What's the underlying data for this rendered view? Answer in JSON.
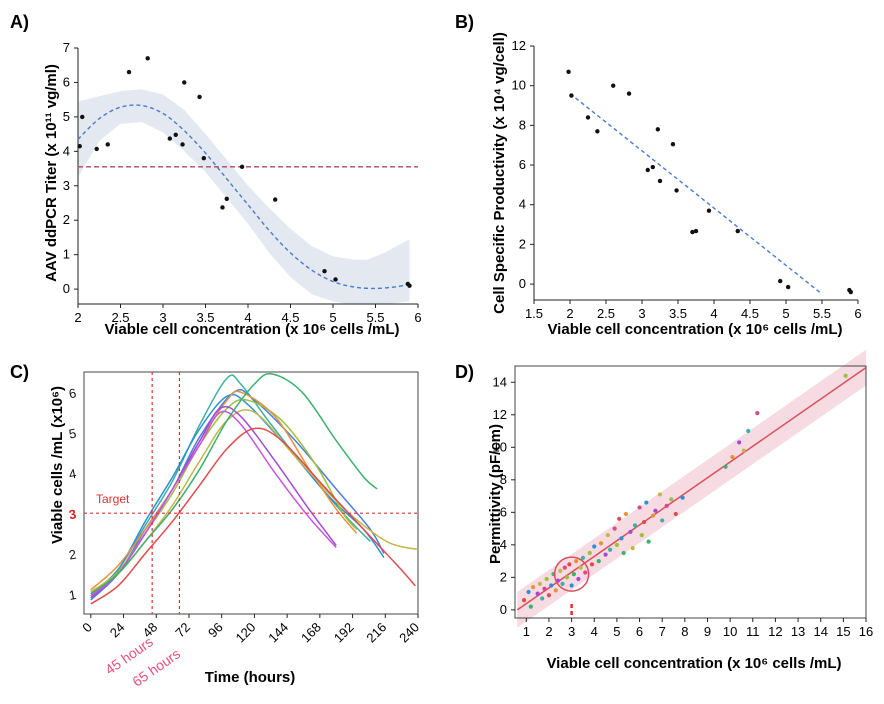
{
  "chart_data": [
    {
      "panel": "A)",
      "type": "scatter",
      "xlabel": "Viable cell concentration (x 10⁶ cells /mL)",
      "ylabel": "AAV ddPCR Titer (x 10¹¹ vg/ml)",
      "xlim": [
        2,
        6
      ],
      "ylim": [
        -0.2,
        7
      ],
      "xticks": [
        "2",
        "2.5",
        "3",
        "3.5",
        "4",
        "4.5",
        "5",
        "5.5",
        "6"
      ],
      "yticks": [
        "0",
        "1",
        "2",
        "3",
        "4",
        "5",
        "6",
        "7"
      ],
      "points": [
        [
          2.02,
          4.15
        ],
        [
          2.05,
          5.0
        ],
        [
          2.22,
          4.07
        ],
        [
          2.35,
          4.2
        ],
        [
          2.6,
          6.3
        ],
        [
          2.82,
          6.7
        ],
        [
          3.08,
          4.37
        ],
        [
          3.15,
          4.48
        ],
        [
          3.23,
          4.2
        ],
        [
          3.25,
          6.0
        ],
        [
          3.43,
          5.58
        ],
        [
          3.48,
          3.8
        ],
        [
          3.7,
          2.37
        ],
        [
          3.75,
          2.62
        ],
        [
          3.93,
          3.55
        ],
        [
          4.32,
          2.6
        ],
        [
          4.9,
          0.52
        ],
        [
          5.03,
          0.28
        ],
        [
          5.88,
          0.15
        ],
        [
          5.9,
          0.1
        ]
      ],
      "fit_curve": [
        [
          2.0,
          4.35
        ],
        [
          2.25,
          4.95
        ],
        [
          2.5,
          5.28
        ],
        [
          2.75,
          5.33
        ],
        [
          3.0,
          5.1
        ],
        [
          3.25,
          4.6
        ],
        [
          3.5,
          3.95
        ],
        [
          3.75,
          3.2
        ],
        [
          4.0,
          2.45
        ],
        [
          4.25,
          1.7
        ],
        [
          4.5,
          1.05
        ],
        [
          4.75,
          0.55
        ],
        [
          5.0,
          0.22
        ],
        [
          5.25,
          0.06
        ],
        [
          5.5,
          0.02
        ],
        [
          5.75,
          0.07
        ],
        [
          5.9,
          0.15
        ]
      ],
      "confidence_band": {
        "upper": [
          [
            2.0,
            5.45
          ],
          [
            2.25,
            5.6
          ],
          [
            2.5,
            5.75
          ],
          [
            2.75,
            5.8
          ],
          [
            3.0,
            5.65
          ],
          [
            3.25,
            5.2
          ],
          [
            3.5,
            4.5
          ],
          [
            3.75,
            3.75
          ],
          [
            4.0,
            3.0
          ],
          [
            4.25,
            2.35
          ],
          [
            4.5,
            1.75
          ],
          [
            4.75,
            1.25
          ],
          [
            5.0,
            0.95
          ],
          [
            5.25,
            0.85
          ],
          [
            5.4,
            0.85
          ],
          [
            5.6,
            1.05
          ],
          [
            5.9,
            1.45
          ]
        ],
        "lower": [
          [
            2.0,
            3.25
          ],
          [
            2.25,
            4.3
          ],
          [
            2.5,
            4.8
          ],
          [
            2.75,
            4.85
          ],
          [
            3.0,
            4.55
          ],
          [
            3.25,
            4.0
          ],
          [
            3.5,
            3.4
          ],
          [
            3.75,
            2.65
          ],
          [
            4.0,
            1.9
          ],
          [
            4.25,
            1.05
          ],
          [
            4.5,
            0.35
          ],
          [
            4.75,
            -0.15
          ],
          [
            5.0,
            -0.35
          ],
          [
            5.2,
            -0.45
          ],
          [
            5.5,
            -0.45
          ],
          [
            5.75,
            -0.4
          ],
          [
            5.9,
            -0.35
          ]
        ]
      },
      "reference_line_y": 3.55,
      "colors": {
        "points": "#111111",
        "fit": "#4a7bd0",
        "band": "#e3e8f1",
        "reference": "#b5485f"
      }
    },
    {
      "panel": "B)",
      "type": "scatter",
      "xlabel": "Viable cell concentration (x 10⁶ cells /mL)",
      "ylabel": "Cell Specific Productivity (x 10⁴ vg/cell)",
      "xlim": [
        1.5,
        6
      ],
      "ylim": [
        -0.5,
        12
      ],
      "xticks": [
        "1.5",
        "2",
        "2.5",
        "3",
        "3.5",
        "4",
        "4.5",
        "5",
        "5.5",
        "6"
      ],
      "yticks": [
        "0",
        "2",
        "4",
        "6",
        "8",
        "10",
        "12"
      ],
      "points": [
        [
          1.98,
          10.7
        ],
        [
          2.02,
          9.5
        ],
        [
          2.25,
          8.4
        ],
        [
          2.38,
          7.7
        ],
        [
          2.6,
          10.0
        ],
        [
          2.82,
          9.6
        ],
        [
          3.08,
          5.75
        ],
        [
          3.15,
          5.9
        ],
        [
          3.22,
          7.8
        ],
        [
          3.25,
          5.2
        ],
        [
          3.43,
          7.05
        ],
        [
          3.48,
          4.72
        ],
        [
          3.7,
          2.62
        ],
        [
          3.75,
          2.67
        ],
        [
          3.93,
          3.7
        ],
        [
          4.33,
          2.67
        ],
        [
          4.92,
          0.15
        ],
        [
          5.03,
          -0.15
        ],
        [
          5.88,
          -0.3
        ],
        [
          5.9,
          -0.4
        ]
      ],
      "fit_line": [
        [
          2.0,
          9.6
        ],
        [
          5.5,
          -0.5
        ]
      ],
      "colors": {
        "points": "#111111",
        "fit": "#4a7bd0"
      }
    },
    {
      "panel": "C)",
      "type": "line",
      "xlabel": "Time (hours)",
      "ylabel": "Viable cells /mL (x10⁶)",
      "xlim": [
        -5,
        240
      ],
      "ylim": [
        0.5,
        6.5
      ],
      "xticks": [
        "0",
        "24",
        "48",
        "72",
        "96",
        "120",
        "144",
        "168",
        "192",
        "216",
        "240"
      ],
      "yticks": [
        "1",
        "2",
        "3",
        "4",
        "5",
        "6"
      ],
      "target": {
        "label": "Target",
        "y": 3,
        "y_tick_label": "3"
      },
      "vertical_markers": [
        {
          "x": 45,
          "label": "45 hours"
        },
        {
          "x": 65,
          "label": "65 hours"
        }
      ],
      "series": [
        {
          "color": "#3db0a8",
          "points": [
            [
              0,
              0.95
            ],
            [
              20,
              1.6
            ],
            [
              40,
              2.7
            ],
            [
              60,
              3.8
            ],
            [
              80,
              5.2
            ],
            [
              100,
              6.35
            ],
            [
              110,
              6.2
            ],
            [
              130,
              5.3
            ],
            [
              160,
              4.0
            ],
            [
              185,
              3.0
            ],
            [
              205,
              2.3
            ]
          ]
        },
        {
          "color": "#4a7de0",
          "points": [
            [
              0,
              0.85
            ],
            [
              20,
              1.5
            ],
            [
              40,
              2.6
            ],
            [
              60,
              3.6
            ],
            [
              80,
              4.9
            ],
            [
              105,
              6.0
            ],
            [
              120,
              5.8
            ],
            [
              150,
              4.8
            ],
            [
              180,
              3.6
            ],
            [
              205,
              2.6
            ],
            [
              215,
              2.0
            ]
          ]
        },
        {
          "color": "#2e8fd6",
          "points": [
            [
              0,
              1.0
            ],
            [
              20,
              1.6
            ],
            [
              40,
              2.8
            ],
            [
              60,
              3.9
            ],
            [
              80,
              5.1
            ],
            [
              100,
              5.9
            ],
            [
              115,
              5.7
            ],
            [
              145,
              4.6
            ],
            [
              175,
              3.4
            ],
            [
              200,
              2.6
            ],
            [
              215,
              1.9
            ]
          ]
        },
        {
          "color": "#9ac13c",
          "points": [
            [
              0,
              1.05
            ],
            [
              20,
              1.55
            ],
            [
              40,
              2.5
            ],
            [
              60,
              3.5
            ],
            [
              80,
              4.7
            ],
            [
              100,
              5.6
            ],
            [
              115,
              5.8
            ],
            [
              140,
              5.3
            ],
            [
              165,
              4.2
            ],
            [
              185,
              3.0
            ],
            [
              195,
              2.6
            ]
          ]
        },
        {
          "color": "#e8913a",
          "points": [
            [
              0,
              1.1
            ],
            [
              20,
              1.7
            ],
            [
              40,
              2.6
            ],
            [
              60,
              3.6
            ],
            [
              80,
              4.8
            ],
            [
              100,
              5.8
            ],
            [
              110,
              6.0
            ],
            [
              135,
              5.4
            ],
            [
              160,
              4.1
            ],
            [
              180,
              3.1
            ],
            [
              195,
              2.5
            ]
          ]
        },
        {
          "color": "#c3b74a",
          "points": [
            [
              0,
              1.05
            ],
            [
              20,
              1.5
            ],
            [
              40,
              2.3
            ],
            [
              60,
              3.2
            ],
            [
              80,
              4.3
            ],
            [
              100,
              5.3
            ],
            [
              120,
              5.5
            ],
            [
              150,
              4.4
            ],
            [
              180,
              3.3
            ],
            [
              200,
              2.7
            ],
            [
              220,
              2.25
            ],
            [
              240,
              2.1
            ]
          ]
        },
        {
          "color": "#a34bd6",
          "points": [
            [
              0,
              0.9
            ],
            [
              20,
              1.5
            ],
            [
              40,
              2.5
            ],
            [
              60,
              3.6
            ],
            [
              80,
              4.8
            ],
            [
              95,
              5.6
            ],
            [
              110,
              5.4
            ],
            [
              135,
              4.3
            ],
            [
              160,
              3.1
            ],
            [
              180,
              2.2
            ]
          ]
        },
        {
          "color": "#c853e0",
          "points": [
            [
              0,
              0.95
            ],
            [
              20,
              1.5
            ],
            [
              40,
              2.5
            ],
            [
              60,
              3.6
            ],
            [
              80,
              4.7
            ],
            [
              95,
              5.5
            ],
            [
              110,
              5.2
            ],
            [
              135,
              4.0
            ],
            [
              160,
              2.9
            ],
            [
              180,
              2.15
            ]
          ]
        },
        {
          "color": "#38b36b",
          "points": [
            [
              0,
              1.0
            ],
            [
              20,
              1.5
            ],
            [
              40,
              2.3
            ],
            [
              60,
              3.1
            ],
            [
              80,
              4.1
            ],
            [
              100,
              5.3
            ],
            [
              120,
              6.2
            ],
            [
              133,
              6.45
            ],
            [
              155,
              6.0
            ],
            [
              180,
              4.8
            ],
            [
              200,
              3.9
            ],
            [
              210,
              3.6
            ]
          ]
        },
        {
          "color": "#e24b4b",
          "points": [
            [
              0,
              0.75
            ],
            [
              20,
              1.2
            ],
            [
              40,
              2.0
            ],
            [
              60,
              2.8
            ],
            [
              80,
              3.7
            ],
            [
              100,
              4.6
            ],
            [
              120,
              5.1
            ],
            [
              140,
              4.8
            ],
            [
              170,
              3.7
            ],
            [
              200,
              2.6
            ],
            [
              225,
              1.7
            ],
            [
              238,
              1.2
            ]
          ]
        }
      ]
    },
    {
      "panel": "D)",
      "type": "scatter",
      "xlabel": "Viable cell concentration (x 10⁶ cells /mL)",
      "ylabel": "Permittivity (pF/cm)",
      "xlim": [
        0.5,
        16
      ],
      "ylim": [
        -0.5,
        15
      ],
      "xticks": [
        "1",
        "2",
        "3",
        "4",
        "5",
        "6",
        "7",
        "8",
        "9",
        "10",
        "11",
        "12",
        "13",
        "14",
        "15",
        "16"
      ],
      "yticks": [
        "0",
        "2",
        "4",
        "6",
        "8",
        "10",
        "12",
        "14"
      ],
      "fit_line": [
        [
          0.6,
          0.0
        ],
        [
          16,
          14.9
        ]
      ],
      "band_halfwidth": 1.1,
      "highlight": {
        "x": 3,
        "y": 2.2
      },
      "points": [
        [
          0.9,
          0.6
        ],
        [
          1.1,
          1.1
        ],
        [
          1.2,
          0.2
        ],
        [
          1.3,
          1.4
        ],
        [
          1.5,
          1.0
        ],
        [
          1.6,
          1.6
        ],
        [
          1.7,
          0.7
        ],
        [
          1.8,
          1.3
        ],
        [
          1.9,
          1.9
        ],
        [
          2.0,
          0.9
        ],
        [
          2.1,
          1.5
        ],
        [
          2.2,
          2.2
        ],
        [
          2.3,
          1.2
        ],
        [
          2.4,
          1.8
        ],
        [
          2.5,
          2.4
        ],
        [
          2.6,
          1.6
        ],
        [
          2.7,
          2.6
        ],
        [
          2.8,
          2.0
        ],
        [
          2.9,
          2.8
        ],
        [
          3.0,
          1.5
        ],
        [
          3.1,
          2.2
        ],
        [
          3.2,
          3.0
        ],
        [
          3.3,
          1.9
        ],
        [
          3.4,
          2.6
        ],
        [
          3.5,
          3.2
        ],
        [
          3.6,
          2.3
        ],
        [
          3.8,
          3.5
        ],
        [
          3.9,
          2.8
        ],
        [
          4.0,
          3.9
        ],
        [
          4.2,
          3.0
        ],
        [
          4.3,
          4.1
        ],
        [
          4.5,
          3.4
        ],
        [
          4.6,
          4.6
        ],
        [
          4.7,
          3.7
        ],
        [
          4.9,
          5.0
        ],
        [
          5.0,
          4.0
        ],
        [
          5.1,
          5.6
        ],
        [
          5.2,
          4.4
        ],
        [
          5.3,
          3.5
        ],
        [
          5.4,
          5.9
        ],
        [
          5.6,
          4.8
        ],
        [
          5.7,
          3.8
        ],
        [
          5.8,
          5.2
        ],
        [
          6.0,
          6.3
        ],
        [
          6.1,
          4.6
        ],
        [
          6.2,
          5.4
        ],
        [
          6.3,
          6.6
        ],
        [
          6.4,
          4.2
        ],
        [
          6.6,
          5.8
        ],
        [
          6.7,
          6.1
        ],
        [
          6.9,
          7.1
        ],
        [
          7.0,
          5.5
        ],
        [
          7.2,
          6.4
        ],
        [
          7.4,
          6.8
        ],
        [
          7.6,
          5.9
        ],
        [
          7.9,
          6.9
        ],
        [
          9.8,
          8.8
        ],
        [
          10.1,
          9.4
        ],
        [
          10.4,
          10.3
        ],
        [
          10.6,
          9.8
        ],
        [
          10.8,
          11.0
        ],
        [
          11.2,
          12.1
        ],
        [
          15.1,
          14.4
        ]
      ],
      "point_colors": [
        "#e24b4b",
        "#2e8fd6",
        "#38b36b",
        "#e8913a",
        "#a34bd6",
        "#c3b74a",
        "#3db0a8",
        "#d94a8c",
        "#9ac13c"
      ],
      "colors": {
        "fit": "#d9505b",
        "band": "#f6dbe2",
        "highlight": "#d9505b"
      }
    }
  ]
}
